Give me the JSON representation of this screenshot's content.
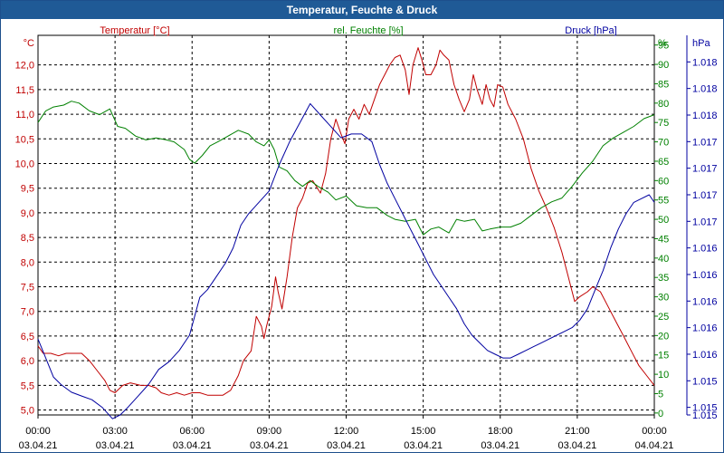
{
  "window": {
    "title": "Temperatur, Feuchte & Druck"
  },
  "chart_data": {
    "type": "line",
    "title": "Temperatur, Feuchte & Druck",
    "x_ticks": [
      {
        "time": "00:00",
        "date": "03.04.21"
      },
      {
        "time": "03:00",
        "date": "03.04.21"
      },
      {
        "time": "06:00",
        "date": "03.04.21"
      },
      {
        "time": "09:00",
        "date": "03.04.21"
      },
      {
        "time": "12:00",
        "date": "03.04.21"
      },
      {
        "time": "15:00",
        "date": "03.04.21"
      },
      {
        "time": "18:00",
        "date": "03.04.21"
      },
      {
        "time": "21:00",
        "date": "03.04.21"
      },
      {
        "time": "00:00",
        "date": "04.04.21"
      }
    ],
    "x_range_hours": [
      0,
      24
    ],
    "grid": true,
    "axes": {
      "temperature": {
        "label": "Temperatur [°C]",
        "unit": "°C",
        "color": "#c00000",
        "range": [
          4.9,
          12.6
        ],
        "ticks": [
          "5,0",
          "5,5",
          "6,0",
          "6,5",
          "7,0",
          "7,5",
          "8,0",
          "8,5",
          "9,0",
          "9,5",
          "10,0",
          "10,5",
          "11,0",
          "11,5",
          "12,0"
        ],
        "tick_values": [
          5.0,
          5.5,
          6.0,
          6.5,
          7.0,
          7.5,
          8.0,
          8.5,
          9.0,
          9.5,
          10.0,
          10.5,
          11.0,
          11.5,
          12.0
        ]
      },
      "humidity": {
        "label": "rel. Feuchte [%]",
        "unit": "%",
        "color": "#008000",
        "range": [
          -0.5,
          97.5
        ],
        "ticks": [
          "0",
          "5",
          "10",
          "15",
          "20",
          "25",
          "30",
          "35",
          "40",
          "45",
          "50",
          "55",
          "60",
          "65",
          "70",
          "75",
          "80",
          "85",
          "90",
          "95"
        ],
        "tick_values": [
          0,
          5,
          10,
          15,
          20,
          25,
          30,
          35,
          40,
          45,
          50,
          55,
          60,
          65,
          70,
          75,
          80,
          85,
          90,
          95
        ]
      },
      "pressure": {
        "label": "Druck [hPa]",
        "unit": "hPa",
        "color": "#0000a0",
        "range": [
          0,
          1
        ],
        "ticks": [
          "1.018",
          "1.018",
          "1.018",
          "1.017",
          "1.017",
          "1.017",
          "1.017",
          "1.016",
          "1.016",
          "1.016",
          "1.016",
          "1.016",
          "1.015",
          "1.015",
          "1.015"
        ],
        "tick_positions": [
          0.93,
          0.86,
          0.79,
          0.72,
          0.65,
          0.58,
          0.51,
          0.44,
          0.37,
          0.3,
          0.23,
          0.16,
          0.09,
          0.02,
          0.0
        ]
      }
    },
    "series": [
      {
        "name": "Temperatur [°C]",
        "axis": "temperature",
        "color": "#c00000",
        "points": [
          [
            0,
            6.3
          ],
          [
            0.2,
            6.15
          ],
          [
            0.5,
            6.15
          ],
          [
            0.8,
            6.1
          ],
          [
            1.1,
            6.15
          ],
          [
            1.4,
            6.15
          ],
          [
            1.7,
            6.15
          ],
          [
            2.0,
            6.0
          ],
          [
            2.3,
            5.8
          ],
          [
            2.6,
            5.6
          ],
          [
            2.8,
            5.4
          ],
          [
            3.0,
            5.35
          ],
          [
            3.3,
            5.5
          ],
          [
            3.6,
            5.55
          ],
          [
            4.0,
            5.5
          ],
          [
            4.3,
            5.5
          ],
          [
            4.6,
            5.45
          ],
          [
            4.8,
            5.35
          ],
          [
            5.1,
            5.3
          ],
          [
            5.4,
            5.35
          ],
          [
            5.7,
            5.3
          ],
          [
            6.0,
            5.35
          ],
          [
            6.3,
            5.35
          ],
          [
            6.6,
            5.3
          ],
          [
            6.9,
            5.3
          ],
          [
            7.2,
            5.3
          ],
          [
            7.5,
            5.4
          ],
          [
            7.8,
            5.7
          ],
          [
            8.0,
            6.0
          ],
          [
            8.3,
            6.2
          ],
          [
            8.5,
            6.9
          ],
          [
            8.7,
            6.7
          ],
          [
            8.8,
            6.45
          ],
          [
            8.9,
            6.7
          ],
          [
            9.1,
            7.1
          ],
          [
            9.25,
            7.7
          ],
          [
            9.35,
            7.4
          ],
          [
            9.5,
            7.05
          ],
          [
            9.7,
            7.7
          ],
          [
            9.9,
            8.5
          ],
          [
            10.1,
            9.1
          ],
          [
            10.3,
            9.3
          ],
          [
            10.5,
            9.6
          ],
          [
            10.7,
            9.65
          ],
          [
            11.0,
            9.4
          ],
          [
            11.2,
            9.8
          ],
          [
            11.4,
            10.5
          ],
          [
            11.6,
            10.9
          ],
          [
            11.8,
            10.6
          ],
          [
            11.95,
            10.4
          ],
          [
            12.1,
            10.9
          ],
          [
            12.3,
            11.1
          ],
          [
            12.5,
            10.9
          ],
          [
            12.7,
            11.2
          ],
          [
            12.9,
            11.0
          ],
          [
            13.1,
            11.3
          ],
          [
            13.3,
            11.6
          ],
          [
            13.5,
            11.8
          ],
          [
            13.7,
            12.0
          ],
          [
            13.9,
            12.15
          ],
          [
            14.1,
            12.2
          ],
          [
            14.3,
            11.9
          ],
          [
            14.45,
            11.4
          ],
          [
            14.6,
            12.0
          ],
          [
            14.8,
            12.35
          ],
          [
            14.95,
            12.1
          ],
          [
            15.1,
            11.8
          ],
          [
            15.3,
            11.8
          ],
          [
            15.5,
            12.0
          ],
          [
            15.65,
            12.3
          ],
          [
            15.8,
            12.2
          ],
          [
            16.0,
            12.1
          ],
          [
            16.2,
            11.6
          ],
          [
            16.4,
            11.3
          ],
          [
            16.6,
            11.05
          ],
          [
            16.8,
            11.3
          ],
          [
            16.95,
            11.8
          ],
          [
            17.1,
            11.5
          ],
          [
            17.3,
            11.2
          ],
          [
            17.45,
            11.6
          ],
          [
            17.6,
            11.3
          ],
          [
            17.75,
            11.15
          ],
          [
            17.9,
            11.6
          ],
          [
            18.1,
            11.55
          ],
          [
            18.3,
            11.2
          ],
          [
            18.6,
            10.9
          ],
          [
            18.9,
            10.5
          ],
          [
            19.2,
            9.9
          ],
          [
            19.5,
            9.45
          ],
          [
            19.8,
            9.1
          ],
          [
            20.1,
            8.7
          ],
          [
            20.4,
            8.2
          ],
          [
            20.7,
            7.6
          ],
          [
            20.9,
            7.2
          ],
          [
            21.1,
            7.3
          ],
          [
            21.4,
            7.4
          ],
          [
            21.6,
            7.5
          ],
          [
            21.9,
            7.4
          ],
          [
            22.2,
            7.1
          ],
          [
            22.5,
            6.8
          ],
          [
            22.8,
            6.5
          ],
          [
            23.1,
            6.2
          ],
          [
            23.4,
            5.9
          ],
          [
            23.7,
            5.7
          ],
          [
            24.0,
            5.5
          ]
        ]
      },
      {
        "name": "rel. Feuchte [%]",
        "axis": "humidity",
        "color": "#008000",
        "points": [
          [
            0,
            75
          ],
          [
            0.3,
            78
          ],
          [
            0.6,
            79
          ],
          [
            1.0,
            79.5
          ],
          [
            1.3,
            80.5
          ],
          [
            1.6,
            80
          ],
          [
            2.0,
            78
          ],
          [
            2.4,
            77
          ],
          [
            2.8,
            78.5
          ],
          [
            3.1,
            74
          ],
          [
            3.4,
            73.5
          ],
          [
            3.8,
            71.5
          ],
          [
            4.2,
            70.5
          ],
          [
            4.6,
            71
          ],
          [
            5.0,
            70.5
          ],
          [
            5.3,
            70
          ],
          [
            5.7,
            68
          ],
          [
            5.9,
            65.5
          ],
          [
            6.1,
            64.5
          ],
          [
            6.4,
            66.5
          ],
          [
            6.7,
            69
          ],
          [
            7.0,
            70
          ],
          [
            7.4,
            71.5
          ],
          [
            7.8,
            73
          ],
          [
            8.2,
            72
          ],
          [
            8.5,
            70
          ],
          [
            8.8,
            69
          ],
          [
            9.0,
            70.5
          ],
          [
            9.2,
            68
          ],
          [
            9.4,
            63.5
          ],
          [
            9.7,
            62.5
          ],
          [
            10.0,
            60
          ],
          [
            10.3,
            58.5
          ],
          [
            10.6,
            60
          ],
          [
            10.9,
            58.5
          ],
          [
            11.3,
            57
          ],
          [
            11.6,
            55
          ],
          [
            12.0,
            56
          ],
          [
            12.4,
            53.5
          ],
          [
            12.8,
            53
          ],
          [
            13.2,
            53
          ],
          [
            13.6,
            51
          ],
          [
            13.9,
            50
          ],
          [
            14.3,
            49.5
          ],
          [
            14.7,
            50
          ],
          [
            15.0,
            46
          ],
          [
            15.3,
            47.5
          ],
          [
            15.6,
            48
          ],
          [
            16.0,
            46.5
          ],
          [
            16.3,
            50
          ],
          [
            16.6,
            49.5
          ],
          [
            17.0,
            50
          ],
          [
            17.3,
            47
          ],
          [
            17.6,
            47.5
          ],
          [
            18.0,
            48
          ],
          [
            18.4,
            48
          ],
          [
            18.8,
            49
          ],
          [
            19.2,
            51
          ],
          [
            19.6,
            53
          ],
          [
            20.0,
            54.5
          ],
          [
            20.4,
            55.5
          ],
          [
            20.8,
            58.5
          ],
          [
            21.2,
            62
          ],
          [
            21.6,
            65
          ],
          [
            22.0,
            69
          ],
          [
            22.4,
            71
          ],
          [
            22.8,
            72.5
          ],
          [
            23.2,
            74
          ],
          [
            23.6,
            76
          ],
          [
            24.0,
            77
          ]
        ]
      },
      {
        "name": "Druck [hPa]",
        "axis": "pressure",
        "color": "#0000a0",
        "points": [
          [
            0,
            0.2
          ],
          [
            0.3,
            0.15
          ],
          [
            0.6,
            0.1
          ],
          [
            0.9,
            0.08
          ],
          [
            1.3,
            0.06
          ],
          [
            1.7,
            0.05
          ],
          [
            2.1,
            0.04
          ],
          [
            2.5,
            0.02
          ],
          [
            2.9,
            -0.01
          ],
          [
            3.2,
            0.0
          ],
          [
            3.5,
            0.02
          ],
          [
            3.9,
            0.05
          ],
          [
            4.3,
            0.08
          ],
          [
            4.7,
            0.12
          ],
          [
            5.1,
            0.14
          ],
          [
            5.5,
            0.17
          ],
          [
            5.9,
            0.21
          ],
          [
            6.1,
            0.26
          ],
          [
            6.3,
            0.31
          ],
          [
            6.6,
            0.33
          ],
          [
            6.9,
            0.36
          ],
          [
            7.3,
            0.4
          ],
          [
            7.6,
            0.44
          ],
          [
            7.9,
            0.5
          ],
          [
            8.2,
            0.53
          ],
          [
            8.6,
            0.56
          ],
          [
            9.0,
            0.59
          ],
          [
            9.4,
            0.66
          ],
          [
            9.8,
            0.72
          ],
          [
            10.2,
            0.77
          ],
          [
            10.6,
            0.82
          ],
          [
            11.0,
            0.79
          ],
          [
            11.4,
            0.76
          ],
          [
            11.8,
            0.73
          ],
          [
            12.2,
            0.74
          ],
          [
            12.6,
            0.74
          ],
          [
            13.0,
            0.72
          ],
          [
            13.3,
            0.66
          ],
          [
            13.6,
            0.61
          ],
          [
            13.9,
            0.57
          ],
          [
            14.2,
            0.53
          ],
          [
            14.5,
            0.49
          ],
          [
            14.8,
            0.45
          ],
          [
            15.1,
            0.41
          ],
          [
            15.4,
            0.37
          ],
          [
            15.7,
            0.34
          ],
          [
            16.0,
            0.31
          ],
          [
            16.3,
            0.28
          ],
          [
            16.6,
            0.24
          ],
          [
            16.9,
            0.21
          ],
          [
            17.2,
            0.19
          ],
          [
            17.5,
            0.17
          ],
          [
            17.8,
            0.16
          ],
          [
            18.1,
            0.15
          ],
          [
            18.4,
            0.15
          ],
          [
            18.7,
            0.16
          ],
          [
            19.0,
            0.17
          ],
          [
            19.3,
            0.18
          ],
          [
            19.6,
            0.19
          ],
          [
            19.9,
            0.2
          ],
          [
            20.2,
            0.21
          ],
          [
            20.5,
            0.22
          ],
          [
            20.8,
            0.23
          ],
          [
            21.1,
            0.25
          ],
          [
            21.4,
            0.28
          ],
          [
            21.7,
            0.33
          ],
          [
            22.0,
            0.38
          ],
          [
            22.3,
            0.44
          ],
          [
            22.6,
            0.49
          ],
          [
            22.9,
            0.53
          ],
          [
            23.2,
            0.56
          ],
          [
            23.5,
            0.57
          ],
          [
            23.8,
            0.58
          ],
          [
            24.0,
            0.56
          ]
        ]
      }
    ]
  }
}
